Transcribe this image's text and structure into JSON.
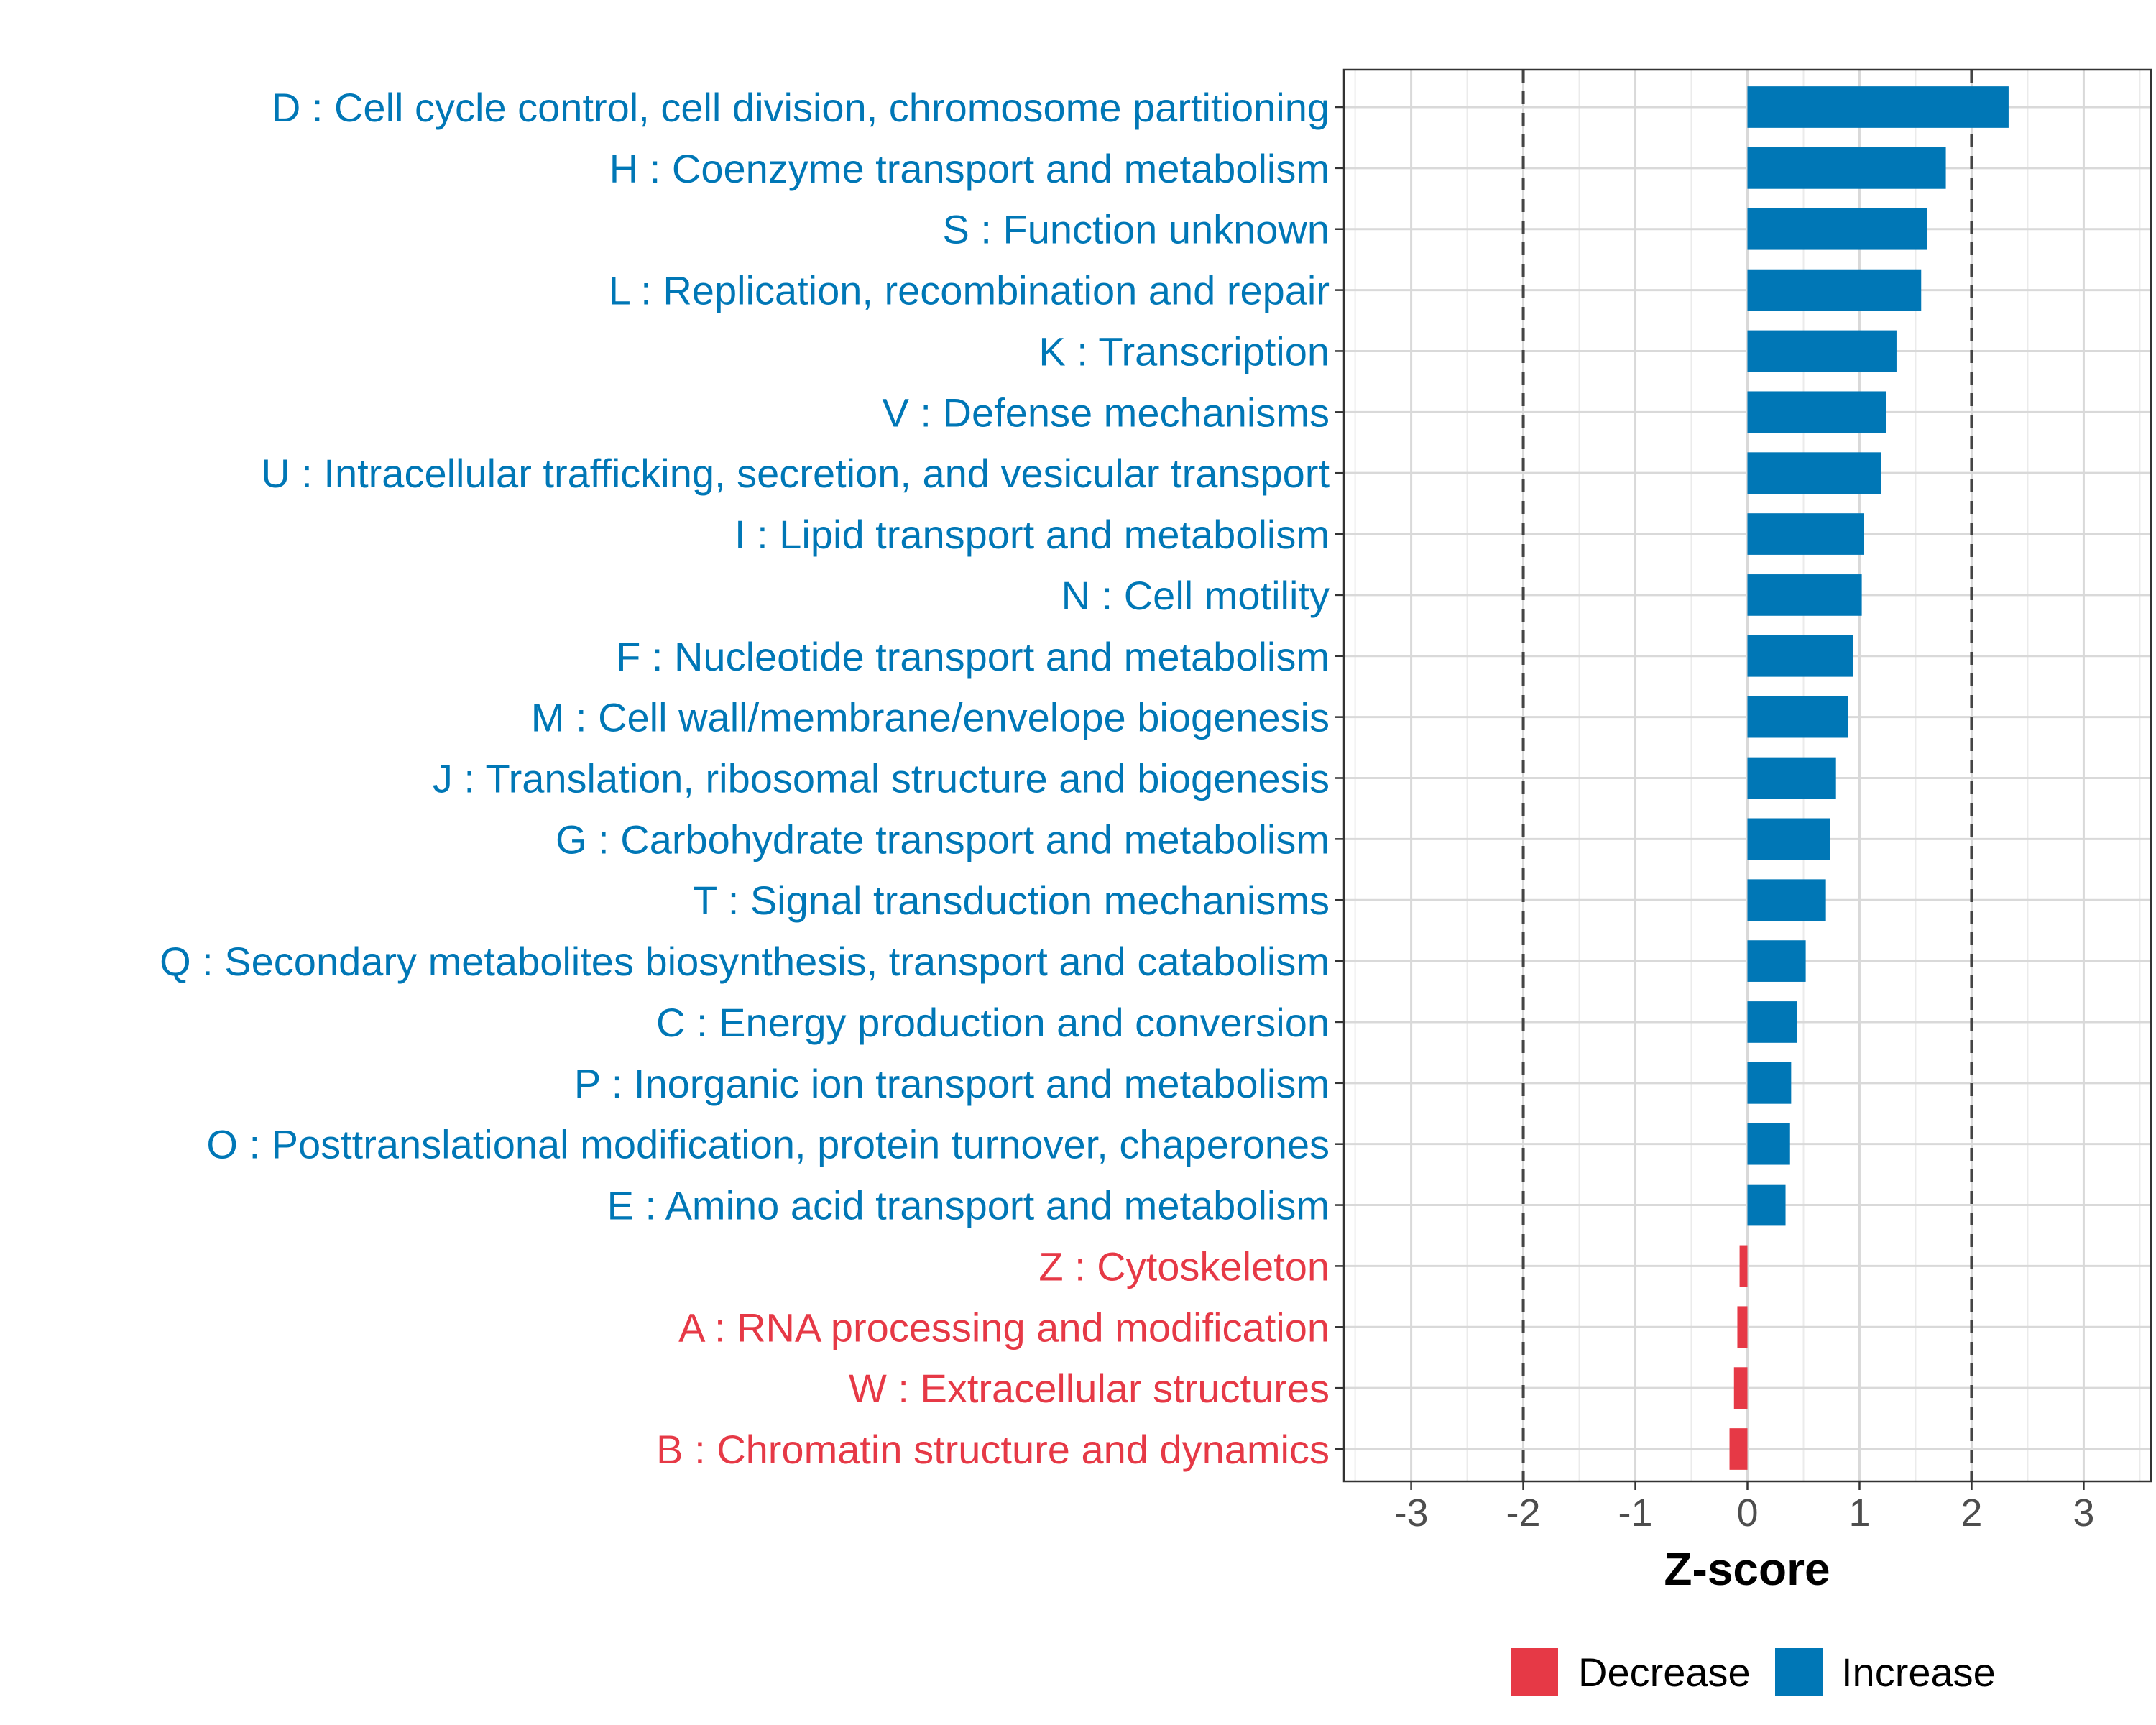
{
  "chart_data": {
    "type": "bar",
    "orientation": "horizontal",
    "xlabel": "Z-score",
    "xlim": [
      -3.6,
      3.6
    ],
    "xticks": [
      -3,
      -2,
      -1,
      0,
      1,
      2,
      3
    ],
    "reference_lines": [
      -2,
      2
    ],
    "grid": true,
    "legend_position": "bottom",
    "colors": {
      "Decrease": "#e63946",
      "Increase": "#0077b6"
    },
    "legend": [
      {
        "name": "Decrease",
        "color": "#e63946"
      },
      {
        "name": "Increase",
        "color": "#0077b6"
      }
    ],
    "categories": [
      "D : Cell cycle control, cell division, chromosome partitioning",
      "H : Coenzyme transport and metabolism",
      "S : Function unknown",
      "L : Replication, recombination and repair",
      "K : Transcription",
      "V : Defense mechanisms",
      "U : Intracellular trafficking, secretion, and vesicular transport",
      "I : Lipid transport and metabolism",
      "N : Cell motility",
      "F : Nucleotide transport and metabolism",
      "M : Cell wall/membrane/envelope biogenesis",
      "J : Translation, ribosomal structure and biogenesis",
      "G : Carbohydrate transport and metabolism",
      "T : Signal transduction mechanisms",
      "Q : Secondary metabolites biosynthesis, transport and catabolism",
      "C : Energy production and conversion",
      "P : Inorganic ion transport and metabolism",
      "O : Posttranslational modification, protein turnover, chaperones",
      "E : Amino acid transport and metabolism",
      "Z : Cytoskeleton",
      "A : RNA processing and modification",
      "W : Extracellular structures",
      "B : Chromatin structure and dynamics"
    ],
    "values": [
      2.33,
      1.77,
      1.6,
      1.55,
      1.33,
      1.24,
      1.19,
      1.04,
      1.02,
      0.94,
      0.9,
      0.79,
      0.74,
      0.7,
      0.52,
      0.44,
      0.39,
      0.38,
      0.34,
      -0.07,
      -0.09,
      -0.12,
      -0.16
    ],
    "direction": [
      "Increase",
      "Increase",
      "Increase",
      "Increase",
      "Increase",
      "Increase",
      "Increase",
      "Increase",
      "Increase",
      "Increase",
      "Increase",
      "Increase",
      "Increase",
      "Increase",
      "Increase",
      "Increase",
      "Increase",
      "Increase",
      "Increase",
      "Decrease",
      "Decrease",
      "Decrease",
      "Decrease"
    ]
  }
}
